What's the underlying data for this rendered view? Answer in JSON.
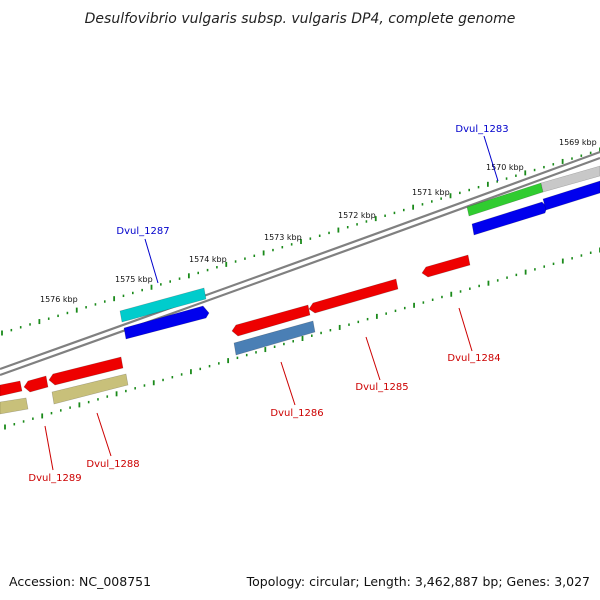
{
  "title": "Desulfovibrio vulgaris subsp. vulgaris DP4, complete genome",
  "footer": {
    "accession": "Accession: NC_008751",
    "summary": "Topology: circular; Length: 3,462,887 bp; Genes: 3,027"
  },
  "colors": {
    "background": "#ffffff",
    "backbone": "#808080",
    "tick": "#1a8a1a",
    "forward_label": "#0000cc",
    "reverse_label": "#cc0000"
  },
  "kbp_labels": [
    "1576 kbp",
    "1575 kbp",
    "1574 kbp",
    "1573 kbp",
    "1572 kbp",
    "1571 kbp",
    "1570 kbp",
    "1569 kbp"
  ],
  "genes": [
    {
      "label": "Dvul_1283",
      "strand": "forward",
      "color": "#0000ee"
    },
    {
      "label": "Dvul_1284",
      "strand": "reverse",
      "color": "#ee0000"
    },
    {
      "label": "Dvul_1285",
      "strand": "reverse",
      "color": "#ee0000"
    },
    {
      "label": "Dvul_1286",
      "strand": "reverse",
      "color": "#ee0000"
    },
    {
      "label": "Dvul_1287",
      "strand": "forward",
      "color": "#0000ee"
    },
    {
      "label": "Dvul_1288",
      "strand": "reverse",
      "color": "#ee0000"
    },
    {
      "label": "Dvul_1289",
      "strand": "reverse",
      "color": "#ee0000"
    }
  ],
  "feature_colors": [
    "#30cc30",
    "#c8c8c8",
    "#00cccc",
    "#4a7fb5",
    "#c8c07a"
  ]
}
